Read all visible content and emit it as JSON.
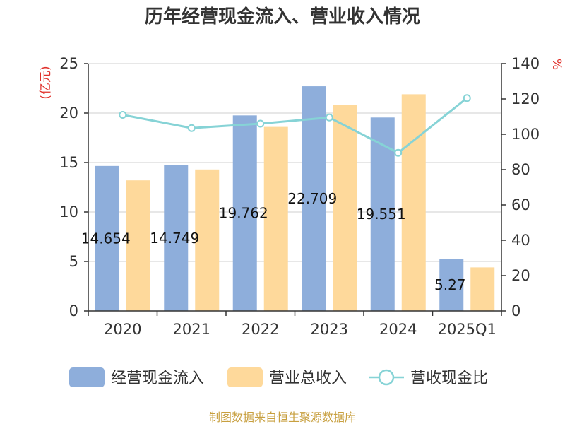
{
  "chart_data": {
    "type": "bar",
    "title": "历年经营现金流入、营业收入情况",
    "categories": [
      "2020",
      "2021",
      "2022",
      "2023",
      "2024",
      "2025Q1"
    ],
    "y_left": {
      "unit_label": "(亿元)",
      "ylim": [
        0,
        25
      ],
      "ticks": [
        "0",
        "5",
        "10",
        "15",
        "20",
        "25"
      ]
    },
    "y_right": {
      "unit_label": "%",
      "ylim": [
        0,
        140
      ],
      "ticks": [
        "0",
        "20",
        "40",
        "60",
        "80",
        "100",
        "120",
        "140"
      ]
    },
    "series": [
      {
        "name": "经营现金流入",
        "kind": "bar",
        "axis": "left",
        "color": "#8eaedb",
        "values": [
          14.654,
          14.749,
          19.762,
          22.709,
          19.551,
          5.27
        ],
        "labels": [
          "14.654",
          "14.749",
          "19.762",
          "22.709",
          "19.551",
          "5.27"
        ]
      },
      {
        "name": "营业总收入",
        "kind": "bar",
        "axis": "left",
        "color": "#fed99b",
        "values": [
          13.2,
          14.3,
          18.6,
          20.8,
          21.9,
          4.4
        ]
      },
      {
        "name": "营收现金比",
        "kind": "line",
        "axis": "right",
        "color": "#86d3d6",
        "values": [
          111,
          103.5,
          106,
          109.5,
          89.5,
          120.5
        ]
      }
    ],
    "grid": true,
    "legend_position": "bottom",
    "unit_color": "#e0302a"
  },
  "footer": {
    "source": "制图数据来自恒生聚源数据库",
    "color": "#c8a040"
  }
}
